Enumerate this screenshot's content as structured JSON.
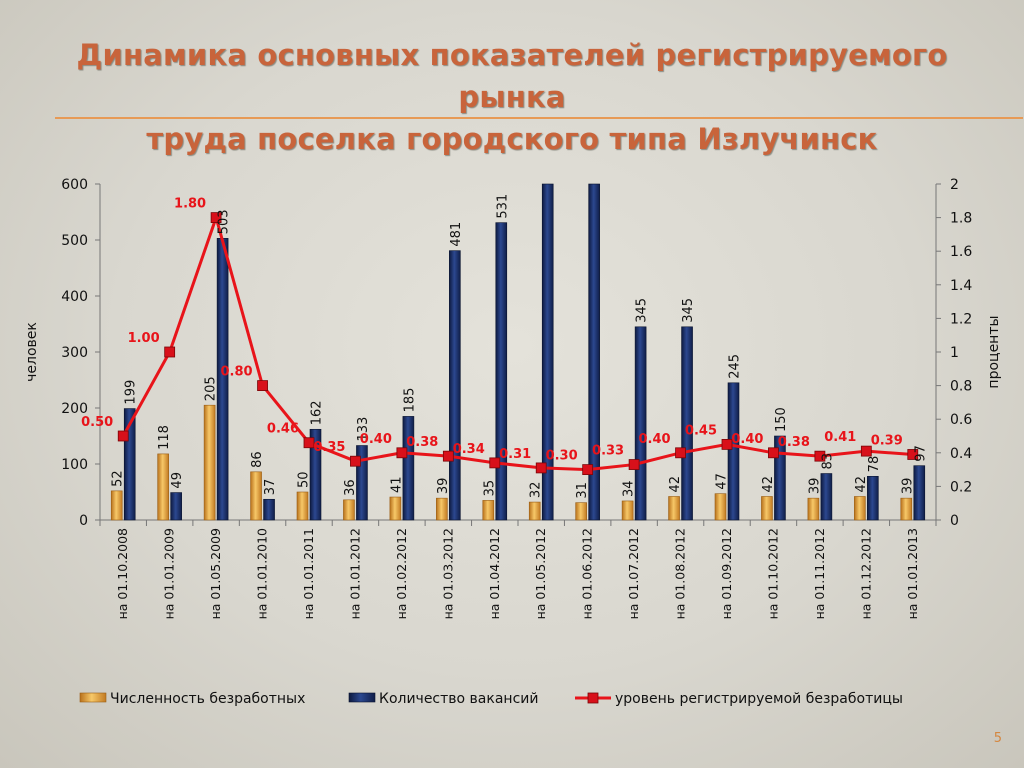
{
  "title_line1": "Динамика основных показателей регистрируемого рынка",
  "title_line2": "труда поселка городского типа Излучинск",
  "page_number": "5",
  "chart_data": {
    "type": "bar",
    "categories": [
      "на 01.10.2008",
      "на 01.01.2009",
      "на 01.05.2009",
      "на 01.01.2010",
      "на 01.01.2011",
      "на 01.01.2012",
      "на 01.02.2012",
      "на 01.03.2012",
      "на 01.04.2012",
      "на 01.05.2012",
      "на 01.06.2012",
      "на 01.07.2012",
      "на 01.08.2012",
      "на 01.09.2012",
      "на 01.10.2012",
      "на 01.11.2012",
      "на 01.12.2012",
      "на 01.01.2013"
    ],
    "series": [
      {
        "name": "Численность безработных",
        "kind": "bar",
        "axis": "left",
        "color": "#e8a33a",
        "values": [
          52,
          118,
          205,
          86,
          50,
          36,
          41,
          39,
          35,
          32,
          31,
          34,
          42,
          47,
          42,
          39,
          42,
          39
        ],
        "labels": [
          "52",
          "118",
          "205",
          "86",
          "50",
          "36",
          "41",
          "39",
          "35",
          "32",
          "31",
          "34",
          "42",
          "47",
          "42",
          "39",
          "42",
          "39"
        ]
      },
      {
        "name": "Количество вакансий",
        "kind": "bar",
        "axis": "left",
        "color": "#1c2f6b",
        "values": [
          199,
          49,
          503,
          37,
          162,
          133,
          185,
          481,
          531,
          600,
          600,
          345,
          345,
          245,
          150,
          83,
          78,
          97
        ],
        "labels": [
          "199",
          "49",
          "503",
          "37",
          "162",
          "133",
          "185",
          "481",
          "531",
          "",
          "",
          "345",
          "345",
          "245",
          "150",
          "83",
          "78",
          "97"
        ]
      },
      {
        "name": "уровень регистрируемой безработицы",
        "kind": "line",
        "axis": "right",
        "color": "#e8141a",
        "values": [
          0.5,
          1.0,
          1.8,
          0.8,
          0.46,
          0.35,
          0.4,
          0.38,
          0.34,
          0.31,
          0.3,
          0.33,
          0.4,
          0.45,
          0.4,
          0.38,
          0.41,
          0.39
        ],
        "labels": [
          "0.50",
          "1.00",
          "1.80",
          "0.80",
          "0.46",
          "0.35",
          "0.40",
          "0.38",
          "0.34",
          "0.31",
          "0.30",
          "0.33",
          "0.40",
          "0.45",
          "0.40",
          "0.38",
          "0.41",
          "0.39"
        ]
      }
    ],
    "ylabel": "человек",
    "y2label": "проценты",
    "ylim": [
      0,
      600
    ],
    "y2lim": [
      0,
      2
    ],
    "yticks": [
      "0",
      "100",
      "200",
      "300",
      "400",
      "500",
      "600"
    ],
    "y2ticks": [
      "0",
      "0.2",
      "0.4",
      "0.6",
      "0.8",
      "1",
      "1.2",
      "1.4",
      "1.6",
      "1.8",
      "2"
    ],
    "legend_position": "bottom"
  }
}
